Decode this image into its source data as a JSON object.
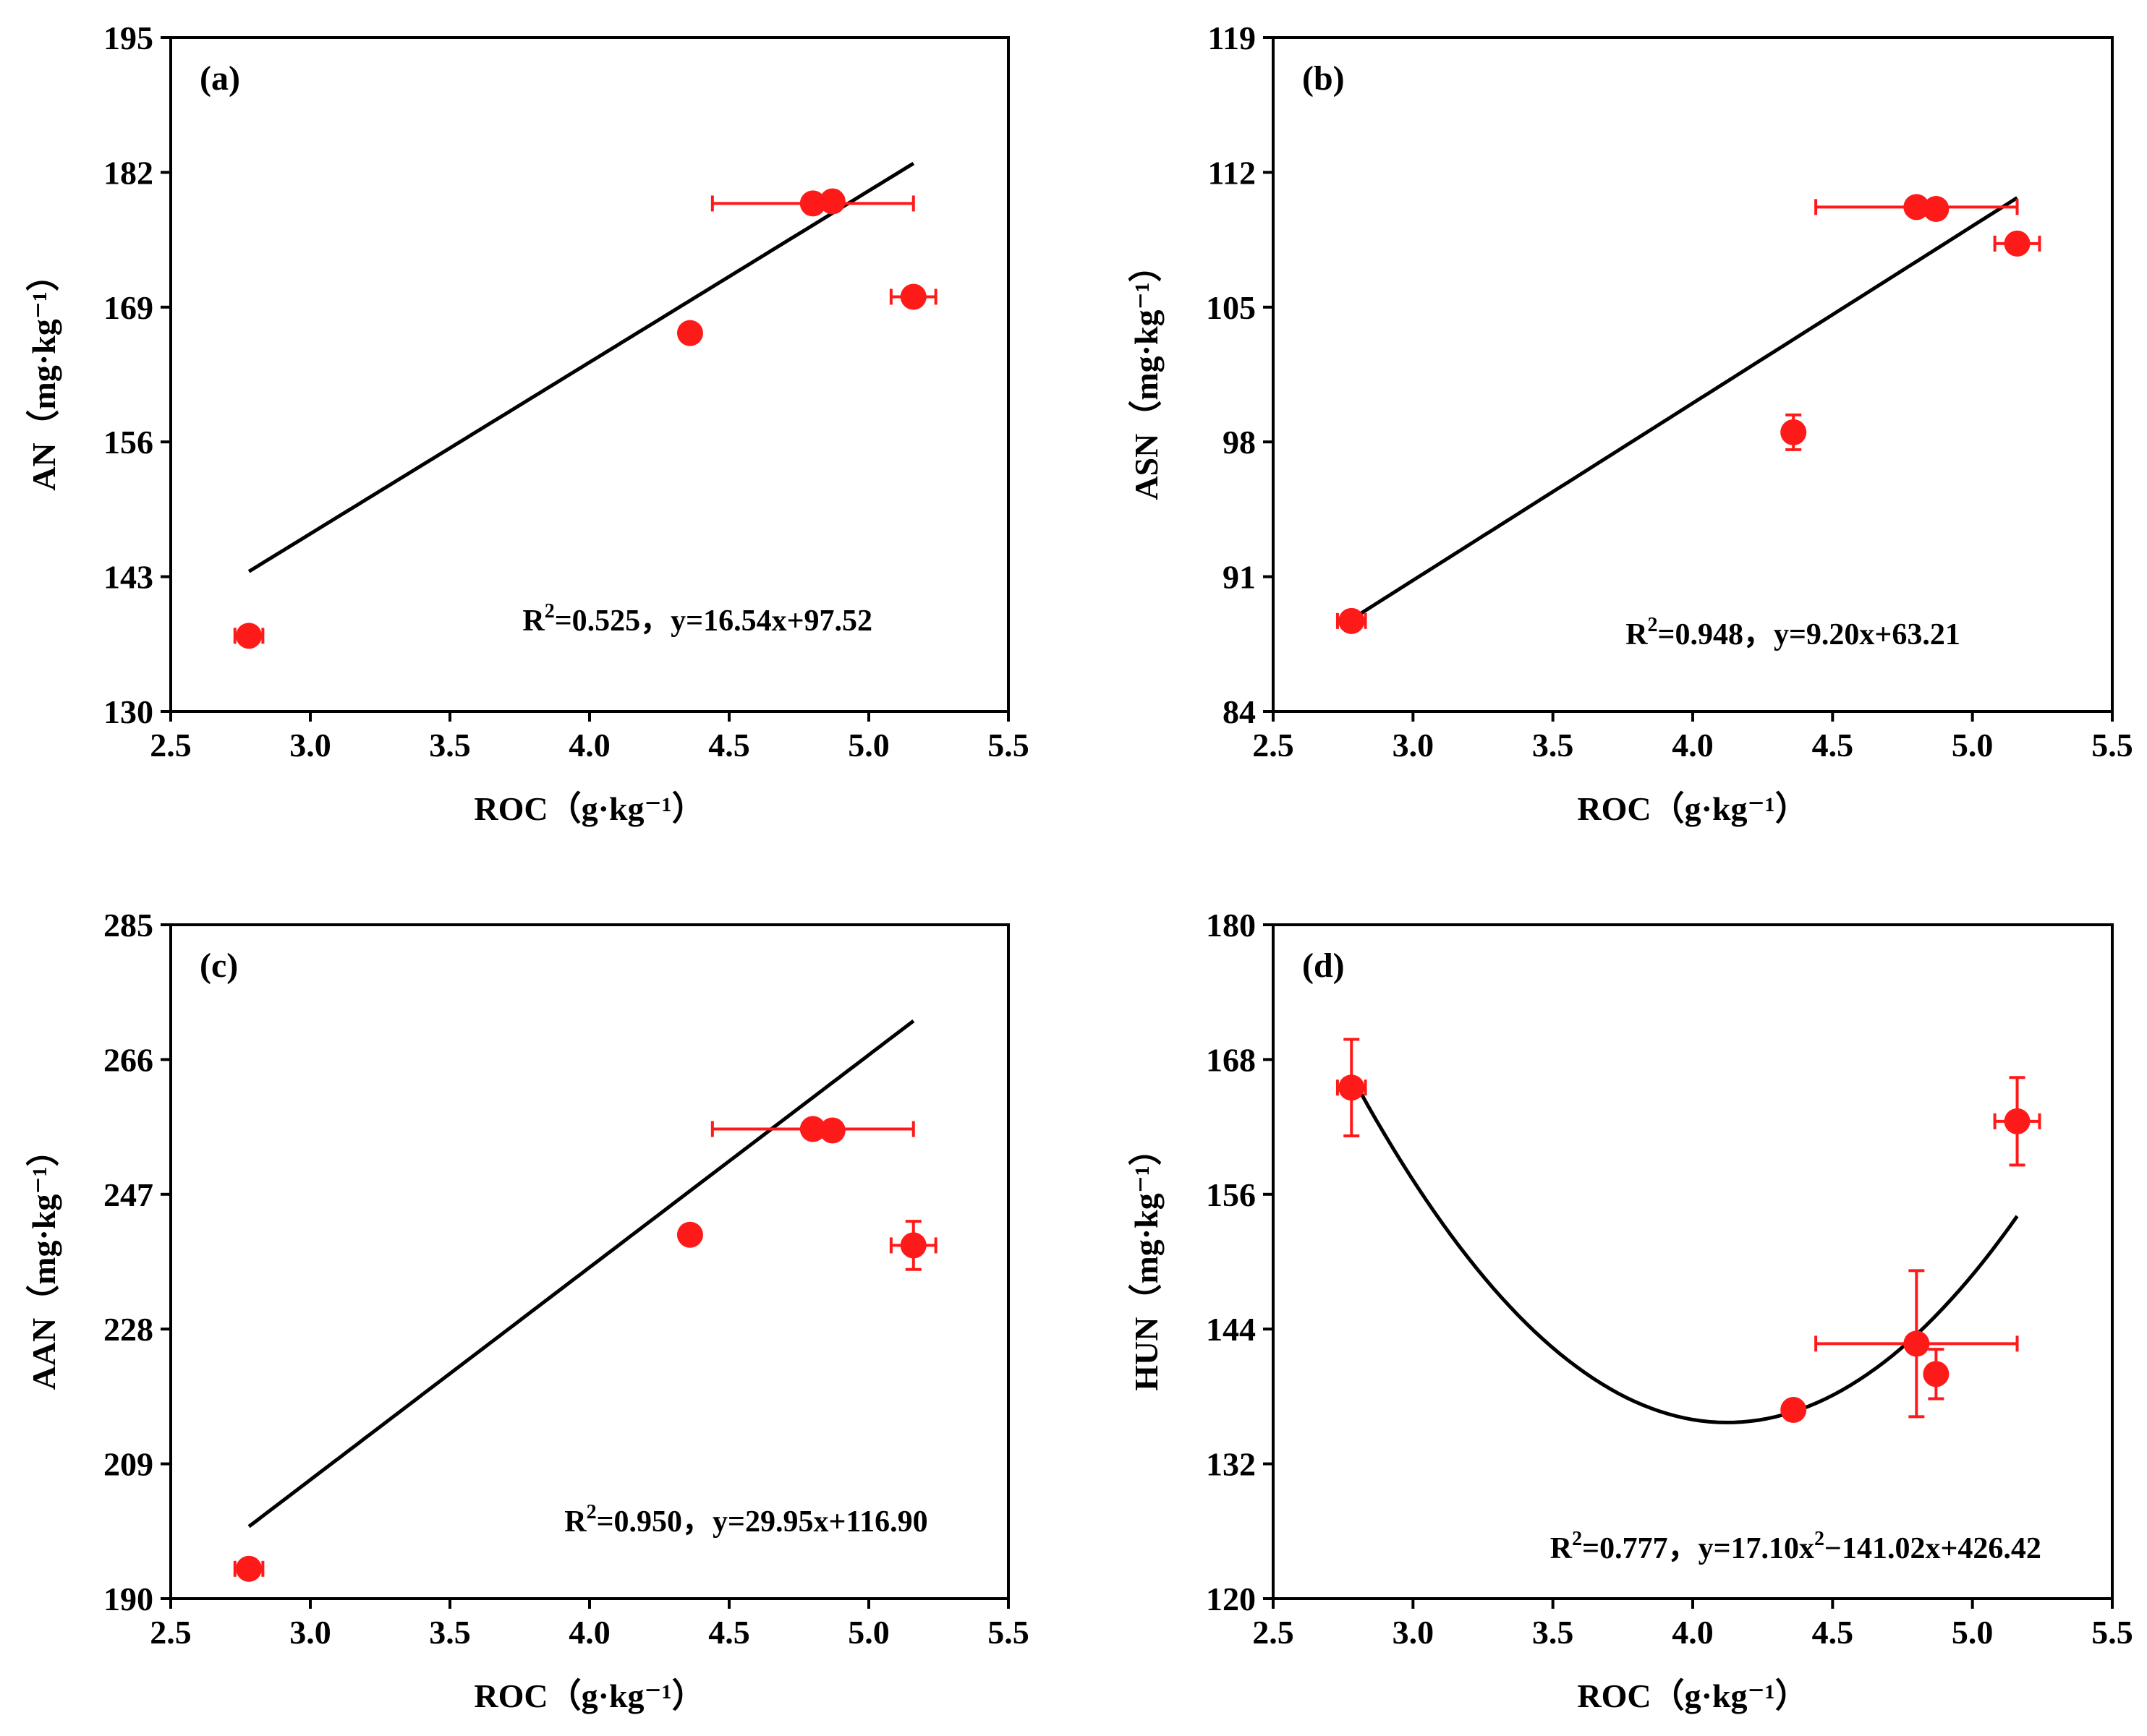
{
  "chart_data": [
    {
      "type": "scatter",
      "panel_label": "(a)",
      "ylabel": "AN",
      "xlabel": "ROC",
      "unit_x": "（g·kg⁻¹）",
      "unit_y": "（mg·kg⁻¹）",
      "xlim": [
        2.5,
        5.5
      ],
      "ylim": [
        130,
        195
      ],
      "xticks": [
        "2.5",
        "3.0",
        "3.5",
        "4.0",
        "4.5",
        "5.0",
        "5.5"
      ],
      "yticks": [
        "130",
        "143",
        "156",
        "169",
        "182",
        "195"
      ],
      "points": [
        {
          "x": 2.78,
          "y": 137.3,
          "xerr": 0.05,
          "yerr": 0.5
        },
        {
          "x": 4.36,
          "y": 166.5,
          "xerr": 0.02,
          "yerr": 0.5
        },
        {
          "x": 4.8,
          "y": 179.0,
          "xerr": 0.36,
          "yerr": 0.3
        },
        {
          "x": 4.87,
          "y": 179.2,
          "xerr": 0.02,
          "yerr": 0.3
        },
        {
          "x": 5.16,
          "y": 170.0,
          "xerr": 0.08,
          "yerr": 0.6
        }
      ],
      "fit": {
        "kind": "linear",
        "a": 16.54,
        "b": 97.52,
        "xmin": 2.78,
        "xmax": 5.16
      },
      "annotation": {
        "r2_label": "R",
        "r2_sup": "2",
        "r2_value": "=0.525，",
        "eq_main": "y=16.54x+97.52",
        "eq_tail": ""
      }
    },
    {
      "type": "scatter",
      "panel_label": "(b)",
      "ylabel": "ASN",
      "xlabel": "ROC",
      "unit_x": "（g·kg⁻¹）",
      "unit_y": "（mg·kg⁻¹）",
      "xlim": [
        2.5,
        5.5
      ],
      "ylim": [
        84,
        119
      ],
      "xticks": [
        "2.5",
        "3.0",
        "3.5",
        "4.0",
        "4.5",
        "5.0",
        "5.5"
      ],
      "yticks": [
        "84",
        "91",
        "98",
        "105",
        "112",
        "119"
      ],
      "points": [
        {
          "x": 2.78,
          "y": 88.7,
          "xerr": 0.05,
          "yerr": 0.3
        },
        {
          "x": 4.36,
          "y": 98.5,
          "xerr": 0.02,
          "yerr": 0.9
        },
        {
          "x": 4.8,
          "y": 110.2,
          "xerr": 0.36,
          "yerr": 0.2
        },
        {
          "x": 4.87,
          "y": 110.1,
          "xerr": 0.02,
          "yerr": 0.2
        },
        {
          "x": 5.16,
          "y": 108.3,
          "xerr": 0.08,
          "yerr": 0.4
        }
      ],
      "fit": {
        "kind": "linear",
        "a": 9.2,
        "b": 63.21,
        "xmin": 2.78,
        "xmax": 5.16
      },
      "annotation": {
        "r2_label": "R",
        "r2_sup": "2",
        "r2_value": "=0.948，",
        "eq_main": "y=9.20x+63.21",
        "eq_tail": ""
      }
    },
    {
      "type": "scatter",
      "panel_label": "(c)",
      "ylabel": "AAN",
      "xlabel": "ROC",
      "unit_x": "（g·kg⁻¹）",
      "unit_y": "（mg·kg⁻¹）",
      "xlim": [
        2.5,
        5.5
      ],
      "ylim": [
        190,
        285
      ],
      "xticks": [
        "2.5",
        "3.0",
        "3.5",
        "4.0",
        "4.5",
        "5.0",
        "5.5"
      ],
      "yticks": [
        "190",
        "209",
        "228",
        "247",
        "266",
        "285"
      ],
      "points": [
        {
          "x": 2.78,
          "y": 194.2,
          "xerr": 0.05,
          "yerr": 0.8
        },
        {
          "x": 4.36,
          "y": 241.3,
          "xerr": 0.02,
          "yerr": 0.8
        },
        {
          "x": 4.8,
          "y": 256.2,
          "xerr": 0.36,
          "yerr": 0.4
        },
        {
          "x": 4.87,
          "y": 256.0,
          "xerr": 0.02,
          "yerr": 0.4
        },
        {
          "x": 5.16,
          "y": 239.8,
          "xerr": 0.08,
          "yerr": 3.4
        }
      ],
      "fit": {
        "kind": "linear",
        "a": 29.95,
        "b": 116.9,
        "xmin": 2.78,
        "xmax": 5.16
      },
      "annotation": {
        "r2_label": "R",
        "r2_sup": "2",
        "r2_value": "=0.950，",
        "eq_main": "y=29.95x+116.90",
        "eq_tail": ""
      }
    },
    {
      "type": "scatter",
      "panel_label": "(d)",
      "ylabel": "HUN",
      "xlabel": "ROC",
      "unit_x": "（g·kg⁻¹）",
      "unit_y": "（mg·kg⁻¹）",
      "xlim": [
        2.5,
        5.5
      ],
      "ylim": [
        120,
        180
      ],
      "xticks": [
        "2.5",
        "3.0",
        "3.5",
        "4.0",
        "4.5",
        "5.0",
        "5.5"
      ],
      "yticks": [
        "120",
        "132",
        "144",
        "156",
        "168",
        "180"
      ],
      "points": [
        {
          "x": 2.78,
          "y": 165.5,
          "xerr": 0.05,
          "yerr": 4.3
        },
        {
          "x": 4.36,
          "y": 136.8,
          "xerr": 0.02,
          "yerr": 0.5
        },
        {
          "x": 4.8,
          "y": 142.7,
          "xerr": 0.36,
          "yerr": 6.5
        },
        {
          "x": 4.87,
          "y": 140.0,
          "xerr": 0.02,
          "yerr": 2.2
        },
        {
          "x": 5.16,
          "y": 162.5,
          "xerr": 0.08,
          "yerr": 3.9
        }
      ],
      "fit": {
        "kind": "quadratic",
        "a": 17.1,
        "b": -141.02,
        "c": 426.42,
        "xmin": 2.78,
        "xmax": 5.16
      },
      "annotation": {
        "r2_label": "R",
        "r2_sup": "2",
        "r2_value": "=0.777，",
        "eq_main": "y=17.10x",
        "eq_sup": "2",
        "eq_tail": "−141.02x+426.42"
      }
    }
  ],
  "colors": {
    "point": "#ff1a1a",
    "fit": "#000000",
    "axis": "#000000"
  }
}
